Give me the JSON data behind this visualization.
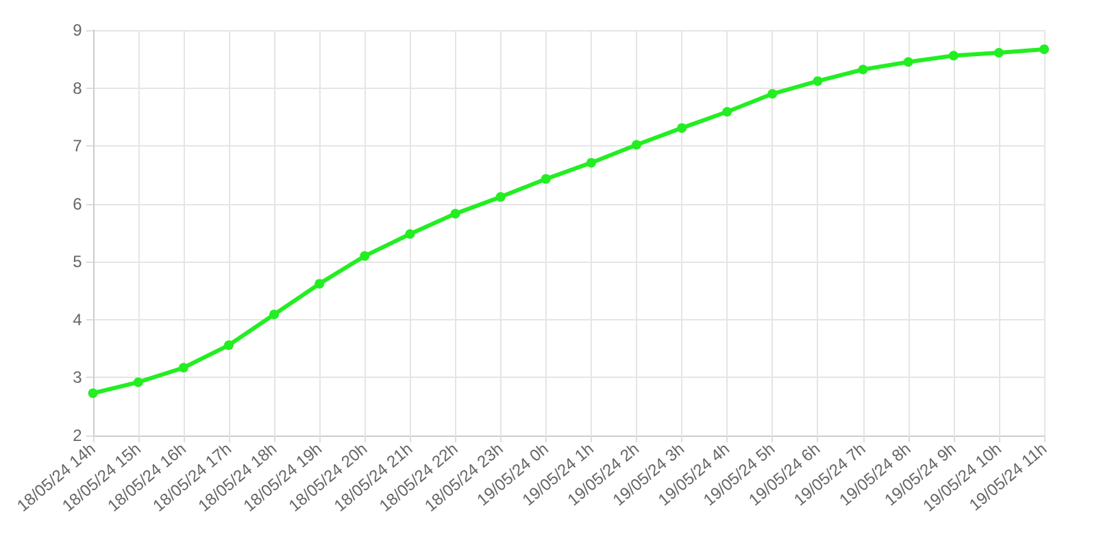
{
  "chart_data": {
    "type": "line",
    "categories": [
      "18/05/24 14h",
      "18/05/24 15h",
      "18/05/24 16h",
      "18/05/24 17h",
      "18/05/24 18h",
      "18/05/24 19h",
      "18/05/24 20h",
      "18/05/24 21h",
      "18/05/24 22h",
      "18/05/24 23h",
      "19/05/24 0h",
      "19/05/24 1h",
      "19/05/24 2h",
      "19/05/24 3h",
      "19/05/24 4h",
      "19/05/24 5h",
      "19/05/24 6h",
      "19/05/24 7h",
      "19/05/24 8h",
      "19/05/24 9h",
      "19/05/24 10h",
      "19/05/24 11h"
    ],
    "series": [
      {
        "color": "#22ee22",
        "values": [
          2.73,
          2.92,
          3.17,
          3.56,
          4.09,
          4.62,
          5.1,
          5.48,
          5.83,
          6.12,
          6.43,
          6.71,
          7.02,
          7.31,
          7.59,
          7.9,
          8.12,
          8.32,
          8.45,
          8.56,
          8.61,
          8.67
        ]
      }
    ],
    "ylim": [
      2,
      9
    ],
    "yticks": [
      2,
      3,
      4,
      5,
      6,
      7,
      8,
      9
    ],
    "grid": true,
    "marker": "circle"
  }
}
